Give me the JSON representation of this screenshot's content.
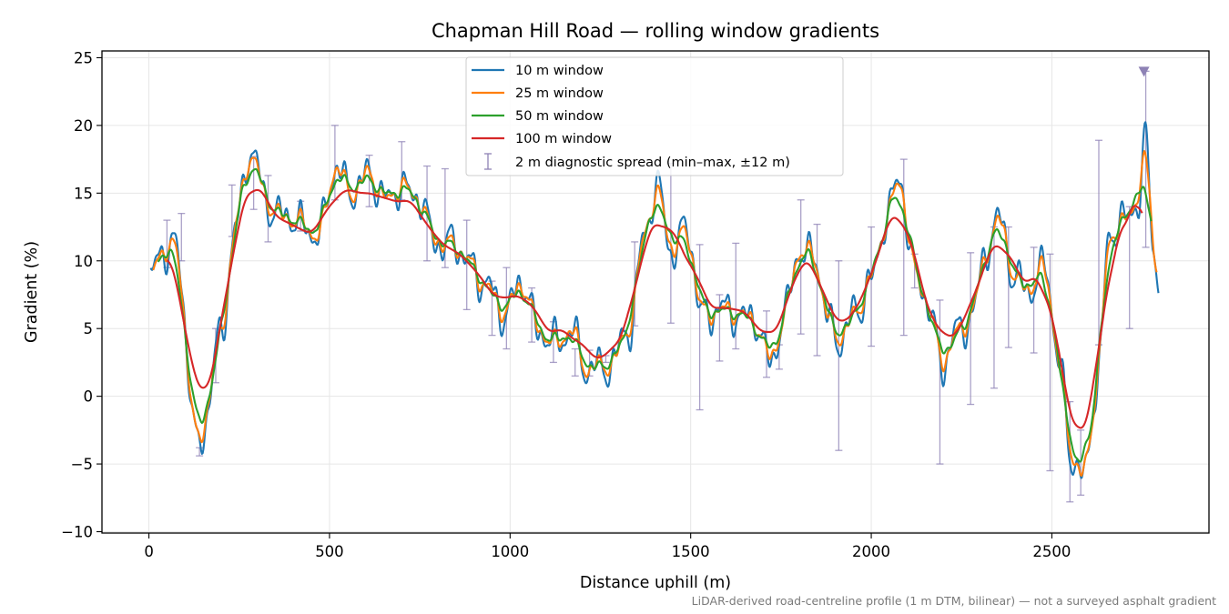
{
  "chart_data": {
    "type": "line",
    "title": "Chapman Hill Road — rolling window gradients",
    "xlabel": "Distance uphill (m)",
    "ylabel": "Gradient (%)",
    "xlim": [
      -130,
      2935
    ],
    "ylim": [
      -10.1,
      25.5
    ],
    "x_ticks": [
      0,
      500,
      1000,
      1500,
      2000,
      2500
    ],
    "y_ticks": [
      -10,
      -5,
      0,
      5,
      10,
      15,
      20,
      25
    ],
    "x_tick_labels": [
      "0",
      "500",
      "1000",
      "1500",
      "2000",
      "2500"
    ],
    "y_tick_labels": [
      "−10",
      "−5",
      "0",
      "5",
      "10",
      "15",
      "20",
      "25"
    ],
    "grid": true,
    "legend_position": "upper center",
    "footnote": "LiDAR-derived road-centreline profile (1 m DTM, bilinear) — not a surveyed asphalt gradient",
    "profile_knots": {
      "x": [
        5,
        40,
        70,
        135,
        200,
        240,
        280,
        330,
        380,
        420,
        470,
        520,
        560,
        610,
        660,
        700,
        740,
        790,
        830,
        880,
        930,
        980,
        1040,
        1080,
        1130,
        1170,
        1210,
        1250,
        1290,
        1330,
        1370,
        1410,
        1450,
        1490,
        1530,
        1580,
        1620,
        1670,
        1720,
        1760,
        1800,
        1840,
        1880,
        1920,
        1960,
        2000,
        2040,
        2080,
        2120,
        2160,
        2200,
        2240,
        2280,
        2320,
        2360,
        2400,
        2440,
        2480,
        2520,
        2560,
        2590,
        2620,
        2660,
        2700,
        2740,
        2760,
        2780,
        2795
      ],
      "y": [
        8.3,
        11.0,
        11.5,
        -3.5,
        4.0,
        13.0,
        17.8,
        14.5,
        12.8,
        13.2,
        11.5,
        17.5,
        14.5,
        16.8,
        14.0,
        16.0,
        14.5,
        12.0,
        11.0,
        10.5,
        8.0,
        6.5,
        8.0,
        5.0,
        3.5,
        5.5,
        1.5,
        2.5,
        2.5,
        5.0,
        12.0,
        15.0,
        11.0,
        12.0,
        6.5,
        6.0,
        6.5,
        5.5,
        3.0,
        5.5,
        11.0,
        10.5,
        5.5,
        4.5,
        6.0,
        9.0,
        12.5,
        16.5,
        9.0,
        6.5,
        2.5,
        4.5,
        6.5,
        10.5,
        13.5,
        8.0,
        8.0,
        10.0,
        2.0,
        -4.5,
        -6.5,
        0.0,
        12.0,
        12.5,
        15.0,
        19.0,
        11.0,
        7.5
      ]
    },
    "series": [
      {
        "name": "10 m window",
        "color": "#1f77b4",
        "smoothing": "10 m",
        "x_range": [
          5,
          2795
        ]
      },
      {
        "name": "25 m window",
        "color": "#ff7f0e",
        "smoothing": "25 m",
        "x_range": [
          12,
          2790
        ]
      },
      {
        "name": "50 m window",
        "color": "#2ca02c",
        "smoothing": "50 m",
        "x_range": [
          25,
          2775
        ]
      },
      {
        "name": "100 m window",
        "color": "#d62728",
        "smoothing": "100 m",
        "x_range": [
          50,
          2750
        ]
      }
    ],
    "diagnostic_spread": {
      "name": "2 m diagnostic spread (min–max, ±12 m)",
      "color": "#8e82b5",
      "x": [
        50,
        90,
        140,
        185,
        230,
        290,
        330,
        420,
        515,
        610,
        700,
        770,
        820,
        880,
        950,
        990,
        1060,
        1120,
        1180,
        1220,
        1265,
        1345,
        1445,
        1525,
        1580,
        1625,
        1710,
        1745,
        1805,
        1850,
        1910,
        2000,
        2090,
        2120,
        2190,
        2275,
        2340,
        2380,
        2450,
        2495,
        2550,
        2580,
        2630,
        2715,
        2760
      ],
      "min": [
        9.5,
        10.0,
        -4.4,
        1.0,
        11.8,
        13.8,
        11.4,
        12.2,
        14.5,
        14.0,
        14.5,
        10.0,
        9.5,
        6.4,
        4.5,
        3.5,
        4.0,
        2.5,
        1.5,
        1.5,
        2.5,
        5.2,
        5.4,
        -1.0,
        2.6,
        3.5,
        1.4,
        2.0,
        4.6,
        3.0,
        -4.0,
        3.7,
        4.5,
        8.0,
        -5.0,
        -0.6,
        0.6,
        3.6,
        3.2,
        -5.5,
        -7.8,
        -7.3,
        3.8,
        5.0,
        11.0
      ],
      "max": [
        13.0,
        13.5,
        -3.8,
        5.0,
        15.6,
        17.7,
        16.3,
        14.4,
        20.0,
        17.8,
        18.8,
        17.0,
        16.8,
        13.0,
        8.5,
        9.5,
        8.0,
        5.5,
        3.5,
        3.4,
        3.0,
        11.4,
        17.2,
        11.2,
        7.5,
        11.3,
        6.3,
        3.8,
        14.5,
        12.7,
        10.0,
        12.5,
        17.5,
        10.5,
        7.1,
        10.6,
        12.5,
        12.5,
        11.0,
        10.5,
        -0.4,
        -2.5,
        18.9,
        14.0,
        24.0
      ]
    },
    "offscale_marker": {
      "x": 2755,
      "y": 24.0,
      "symbol": "triangle-down",
      "color": "#8e82b5"
    }
  }
}
